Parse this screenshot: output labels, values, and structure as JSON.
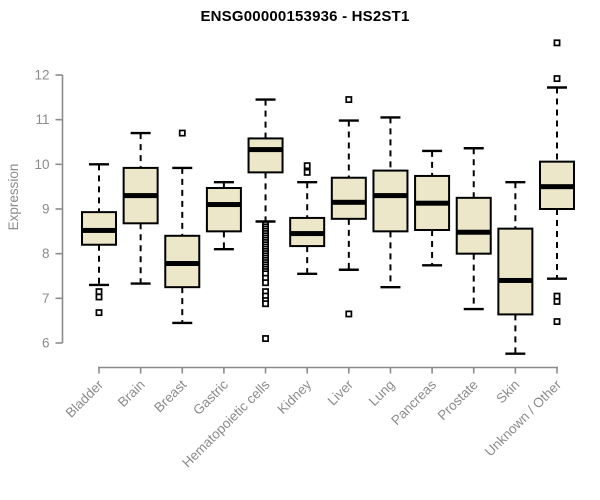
{
  "chart_data": {
    "type": "boxplot",
    "title": "ENSG00000153936 - HS2ST1",
    "ylabel": "Expression",
    "xlabel": "",
    "ylim": [
      6,
      12
    ],
    "yticks": [
      6,
      7,
      8,
      9,
      10,
      11,
      12
    ],
    "grid": false,
    "legend_position": "none",
    "categories": [
      "Bladder",
      "Brain",
      "Breast",
      "Gastric",
      "Hematopoietic cells",
      "Kidney",
      "Liver",
      "Lung",
      "Pancreas",
      "Prostate",
      "Skin",
      "Unknown / Other"
    ],
    "series": [
      {
        "name": "Bladder",
        "whisker_low": 7.3,
        "q1": 8.2,
        "median": 8.52,
        "q3": 8.93,
        "whisker_high": 10.0,
        "outliers": [
          7.15,
          7.03,
          6.68
        ]
      },
      {
        "name": "Brain",
        "whisker_low": 7.33,
        "q1": 8.68,
        "median": 9.3,
        "q3": 9.92,
        "whisker_high": 10.7,
        "outliers": []
      },
      {
        "name": "Breast",
        "whisker_low": 6.45,
        "q1": 7.25,
        "median": 7.78,
        "q3": 8.4,
        "whisker_high": 9.92,
        "outliers": [
          10.7
        ]
      },
      {
        "name": "Gastric",
        "whisker_low": 8.1,
        "q1": 8.5,
        "median": 9.1,
        "q3": 9.47,
        "whisker_high": 9.6,
        "outliers": []
      },
      {
        "name": "Hematopoietic cells",
        "whisker_low": 8.72,
        "q1": 9.82,
        "median": 10.33,
        "q3": 10.58,
        "whisker_high": 11.45,
        "outliers": [
          8.65,
          8.6,
          8.55,
          8.5,
          8.45,
          8.4,
          8.35,
          8.3,
          8.25,
          8.2,
          8.15,
          8.1,
          8.05,
          8.0,
          7.95,
          7.9,
          7.85,
          7.8,
          7.75,
          7.7,
          7.65,
          7.6,
          7.55,
          7.45,
          7.35,
          7.15,
          7.05,
          6.95,
          6.88,
          6.1
        ]
      },
      {
        "name": "Kidney",
        "whisker_low": 7.55,
        "q1": 8.17,
        "median": 8.45,
        "q3": 8.8,
        "whisker_high": 9.6,
        "outliers": [
          9.97,
          9.82
        ]
      },
      {
        "name": "Liver",
        "whisker_low": 7.64,
        "q1": 8.78,
        "median": 9.15,
        "q3": 9.7,
        "whisker_high": 10.98,
        "outliers": [
          11.45,
          6.65
        ]
      },
      {
        "name": "Lung",
        "whisker_low": 7.25,
        "q1": 8.5,
        "median": 9.3,
        "q3": 9.86,
        "whisker_high": 11.05,
        "outliers": []
      },
      {
        "name": "Pancreas",
        "whisker_low": 7.74,
        "q1": 8.53,
        "median": 9.13,
        "q3": 9.74,
        "whisker_high": 10.3,
        "outliers": []
      },
      {
        "name": "Prostate",
        "whisker_low": 6.76,
        "q1": 8.0,
        "median": 8.48,
        "q3": 9.25,
        "whisker_high": 10.36,
        "outliers": []
      },
      {
        "name": "Skin",
        "whisker_low": 5.76,
        "q1": 6.64,
        "median": 7.4,
        "q3": 8.56,
        "whisker_high": 9.6,
        "outliers": []
      },
      {
        "name": "Unknown / Other",
        "whisker_low": 7.44,
        "q1": 9.0,
        "median": 9.5,
        "q3": 10.06,
        "whisker_high": 11.72,
        "outliers": [
          12.72,
          11.92,
          7.05,
          6.93,
          6.48
        ]
      }
    ]
  },
  "colors": {
    "box_fill": "#EDE7C9",
    "box_stroke": "#000000",
    "median": "#000000",
    "whisker": "#000000",
    "outlier_stroke": "#000000",
    "outlier_fill": "#ffffff",
    "axis": "#8b8b8b",
    "axis_text": "#8b8b8b",
    "title_text": "#000000",
    "background": "#ffffff"
  }
}
